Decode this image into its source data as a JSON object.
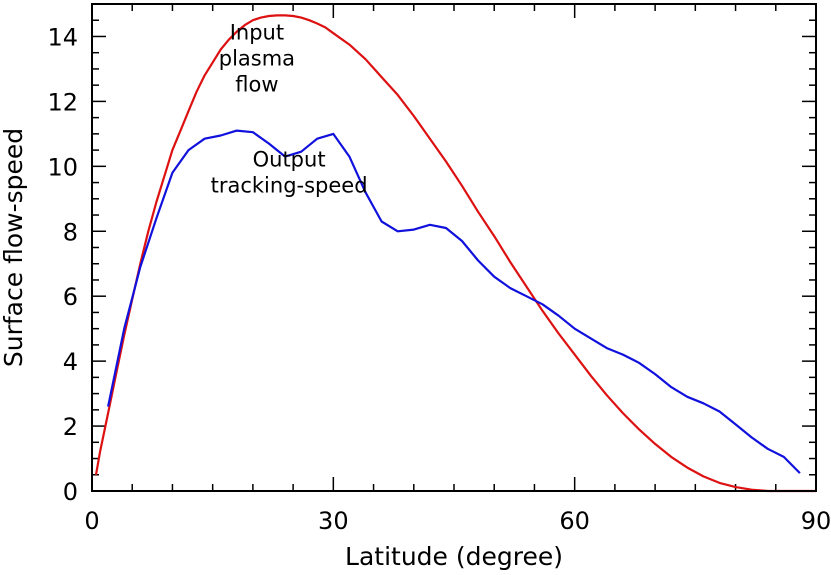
{
  "chart_data": {
    "type": "line",
    "xlabel": "Latitude (degree)",
    "ylabel": "Surface flow-speed",
    "xlim": [
      0,
      90
    ],
    "ylim": [
      0,
      15
    ],
    "xticks": [
      0,
      30,
      60,
      90
    ],
    "yticks": [
      0,
      2,
      4,
      6,
      8,
      10,
      12,
      14
    ],
    "grid": false,
    "annotations": [
      {
        "lines": [
          "Input",
          "plasma",
          "flow"
        ],
        "x": 20.5,
        "y": 13.9
      },
      {
        "lines": [
          "Output",
          "tracking-speed"
        ],
        "x": 24.5,
        "y": 10.0
      }
    ],
    "series": [
      {
        "color": "#dd1111",
        "x": [
          0.5,
          1,
          2,
          3,
          4,
          5,
          6,
          7,
          8,
          9,
          10,
          11,
          12,
          13,
          14,
          15,
          16,
          17,
          18,
          19,
          20,
          21,
          22,
          23,
          24,
          25,
          26,
          27,
          28,
          29,
          30,
          32,
          34,
          36,
          38,
          40,
          42,
          44,
          46,
          48,
          50,
          52,
          54,
          56,
          58,
          60,
          62,
          64,
          66,
          68,
          70,
          72,
          74,
          76,
          78,
          80,
          82,
          84,
          86,
          88,
          90
        ],
        "values": [
          0.5,
          1.2,
          2.4,
          3.6,
          4.8,
          5.9,
          7.0,
          8.0,
          8.9,
          9.7,
          10.5,
          11.1,
          11.7,
          12.3,
          12.8,
          13.2,
          13.6,
          13.9,
          14.15,
          14.35,
          14.5,
          14.58,
          14.63,
          14.65,
          14.65,
          14.63,
          14.58,
          14.5,
          14.4,
          14.28,
          14.1,
          13.75,
          13.3,
          12.75,
          12.2,
          11.55,
          10.85,
          10.15,
          9.4,
          8.6,
          7.85,
          7.05,
          6.3,
          5.55,
          4.85,
          4.2,
          3.55,
          2.95,
          2.4,
          1.9,
          1.45,
          1.05,
          0.72,
          0.45,
          0.25,
          0.12,
          0.04,
          0.0,
          0.0,
          0.0,
          0.0
        ]
      },
      {
        "color": "#1111dd",
        "x": [
          2,
          4,
          6,
          8,
          10,
          12,
          14,
          16,
          18,
          20,
          22,
          24,
          26,
          28,
          30,
          32,
          34,
          36,
          38,
          40,
          42,
          44,
          46,
          48,
          50,
          52,
          54,
          56,
          58,
          60,
          62,
          64,
          66,
          68,
          70,
          72,
          74,
          76,
          78,
          80,
          82,
          84,
          86,
          88
        ],
        "values": [
          2.6,
          5.0,
          6.9,
          8.4,
          9.8,
          10.5,
          10.85,
          10.95,
          11.1,
          11.05,
          10.7,
          10.3,
          10.45,
          10.85,
          11.0,
          10.3,
          9.2,
          8.3,
          8.0,
          8.05,
          8.2,
          8.1,
          7.7,
          7.1,
          6.6,
          6.25,
          6.0,
          5.75,
          5.4,
          5.0,
          4.7,
          4.4,
          4.2,
          3.95,
          3.6,
          3.2,
          2.9,
          2.7,
          2.45,
          2.05,
          1.65,
          1.3,
          1.05,
          0.55
        ]
      }
    ]
  }
}
